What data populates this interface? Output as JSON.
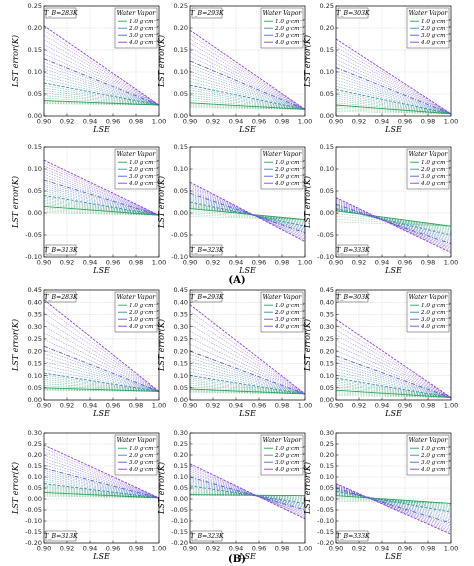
{
  "figure": {
    "part_labels": [
      "(A)",
      "(B)"
    ],
    "series_colors": [
      "#2ca05a",
      "#3a8ea6",
      "#5560c8",
      "#8a3fe0"
    ]
  },
  "chart_data": [
    {
      "type": "line",
      "part": "(A)",
      "tb_label": "T_B=283K",
      "xlabel": "LSE",
      "ylabel": "LST error(K)",
      "xlim": [
        0.9,
        1.0
      ],
      "ylim": [
        0.0,
        0.25
      ],
      "yticks": [
        0.0,
        0.05,
        0.1,
        0.15,
        0.2,
        0.25
      ],
      "xticks": [
        0.9,
        0.92,
        0.94,
        0.96,
        0.98,
        1.0
      ],
      "legend_title": "Water Vapor",
      "legend_position": "top-right",
      "tb_position": "top-left",
      "grid": true,
      "series": [
        {
          "name": "1.0 g·cm⁻²",
          "x": [
            0.9,
            1.0
          ],
          "y": [
            0.035,
            0.025
          ]
        },
        {
          "name": "2.0 g·cm⁻²",
          "x": [
            0.9,
            1.0
          ],
          "y": [
            0.075,
            0.025
          ]
        },
        {
          "name": "3.0 g·cm⁻²",
          "x": [
            0.9,
            1.0
          ],
          "y": [
            0.13,
            0.025
          ]
        },
        {
          "name": "4.0 g·cm⁻²",
          "x": [
            0.9,
            1.0
          ],
          "y": [
            0.205,
            0.025
          ]
        }
      ]
    },
    {
      "type": "line",
      "part": "(A)",
      "tb_label": "T_B=293K",
      "xlabel": "LSE",
      "ylabel": "LST error(K)",
      "xlim": [
        0.9,
        1.0
      ],
      "ylim": [
        0.0,
        0.25
      ],
      "yticks": [
        0.0,
        0.05,
        0.1,
        0.15,
        0.2,
        0.25
      ],
      "xticks": [
        0.9,
        0.92,
        0.94,
        0.96,
        0.98,
        1.0
      ],
      "legend_title": "Water Vapor",
      "legend_position": "top-right",
      "tb_position": "top-left",
      "grid": true,
      "series": [
        {
          "name": "1.0 g·cm⁻²",
          "x": [
            0.9,
            1.0
          ],
          "y": [
            0.03,
            0.015
          ]
        },
        {
          "name": "2.0 g·cm⁻²",
          "x": [
            0.9,
            1.0
          ],
          "y": [
            0.07,
            0.015
          ]
        },
        {
          "name": "3.0 g·cm⁻²",
          "x": [
            0.9,
            1.0
          ],
          "y": [
            0.125,
            0.015
          ]
        },
        {
          "name": "4.0 g·cm⁻²",
          "x": [
            0.9,
            1.0
          ],
          "y": [
            0.195,
            0.015
          ]
        }
      ]
    },
    {
      "type": "line",
      "part": "(A)",
      "tb_label": "T_B=303K",
      "xlabel": "LSE",
      "ylabel": "LST error(K)",
      "xlim": [
        0.9,
        1.0
      ],
      "ylim": [
        0.0,
        0.25
      ],
      "yticks": [
        0.0,
        0.05,
        0.1,
        0.15,
        0.2,
        0.25
      ],
      "xticks": [
        0.9,
        0.92,
        0.94,
        0.96,
        0.98,
        1.0
      ],
      "legend_title": "Water Vapor",
      "legend_position": "top-right",
      "tb_position": "top-left",
      "grid": true,
      "series": [
        {
          "name": "1.0 g·cm⁻²",
          "x": [
            0.9,
            1.0
          ],
          "y": [
            0.025,
            0.005
          ]
        },
        {
          "name": "2.0 g·cm⁻²",
          "x": [
            0.9,
            1.0
          ],
          "y": [
            0.06,
            0.005
          ]
        },
        {
          "name": "3.0 g·cm⁻²",
          "x": [
            0.9,
            1.0
          ],
          "y": [
            0.11,
            0.005
          ]
        },
        {
          "name": "4.0 g·cm⁻²",
          "x": [
            0.9,
            1.0
          ],
          "y": [
            0.175,
            0.005
          ]
        }
      ]
    },
    {
      "type": "line",
      "part": "(A)",
      "tb_label": "T_B=313K",
      "xlabel": "LSE",
      "ylabel": "LST error(K)",
      "xlim": [
        0.9,
        1.0
      ],
      "ylim": [
        -0.1,
        0.15
      ],
      "yticks": [
        -0.1,
        -0.05,
        0.0,
        0.05,
        0.1,
        0.15
      ],
      "xticks": [
        0.9,
        0.92,
        0.94,
        0.96,
        0.98,
        1.0
      ],
      "legend_title": "Water Vapor",
      "legend_position": "top-right",
      "tb_position": "bottom-left",
      "grid": true,
      "series": [
        {
          "name": "1.0 g·cm⁻²",
          "x": [
            0.9,
            1.0
          ],
          "y": [
            0.015,
            -0.005
          ]
        },
        {
          "name": "2.0 g·cm⁻²",
          "x": [
            0.9,
            1.0
          ],
          "y": [
            0.04,
            -0.005
          ]
        },
        {
          "name": "3.0 g·cm⁻²",
          "x": [
            0.9,
            1.0
          ],
          "y": [
            0.075,
            -0.005
          ]
        },
        {
          "name": "4.0 g·cm⁻²",
          "x": [
            0.9,
            1.0
          ],
          "y": [
            0.12,
            -0.005
          ]
        }
      ]
    },
    {
      "type": "line",
      "part": "(A)",
      "tb_label": "T_B=323K",
      "xlabel": "LSE",
      "ylabel": "LST error(K)",
      "xlim": [
        0.9,
        1.0
      ],
      "ylim": [
        -0.1,
        0.15
      ],
      "yticks": [
        -0.1,
        -0.05,
        0.0,
        0.05,
        0.1,
        0.15
      ],
      "xticks": [
        0.9,
        0.92,
        0.94,
        0.96,
        0.98,
        1.0
      ],
      "legend_title": "Water Vapor",
      "legend_position": "top-right",
      "tb_position": "bottom-left",
      "grid": true,
      "series": [
        {
          "name": "1.0 g·cm⁻²",
          "x": [
            0.9,
            1.0
          ],
          "y": [
            0.01,
            -0.015
          ]
        },
        {
          "name": "2.0 g·cm⁻²",
          "x": [
            0.9,
            1.0
          ],
          "y": [
            0.025,
            -0.03
          ]
        },
        {
          "name": "3.0 g·cm⁻²",
          "x": [
            0.9,
            1.0
          ],
          "y": [
            0.045,
            -0.045
          ]
        },
        {
          "name": "4.0 g·cm⁻²",
          "x": [
            0.9,
            1.0
          ],
          "y": [
            0.07,
            -0.065
          ]
        }
      ]
    },
    {
      "type": "line",
      "part": "(A)",
      "tb_label": "T_B=333K",
      "xlabel": "LSE",
      "ylabel": "LST error(K)",
      "xlim": [
        0.9,
        1.0
      ],
      "ylim": [
        -0.1,
        0.15
      ],
      "yticks": [
        -0.1,
        -0.05,
        0.0,
        0.05,
        0.1,
        0.15
      ],
      "xticks": [
        0.9,
        0.92,
        0.94,
        0.96,
        0.98,
        1.0
      ],
      "legend_title": "Water Vapor",
      "legend_position": "top-right",
      "tb_position": "bottom-left",
      "grid": true,
      "series": [
        {
          "name": "1.0 g·cm⁻²",
          "x": [
            0.9,
            1.0
          ],
          "y": [
            0.005,
            -0.03
          ]
        },
        {
          "name": "2.0 g·cm⁻²",
          "x": [
            0.9,
            1.0
          ],
          "y": [
            0.01,
            -0.05
          ]
        },
        {
          "name": "3.0 g·cm⁻²",
          "x": [
            0.9,
            1.0
          ],
          "y": [
            0.02,
            -0.07
          ]
        },
        {
          "name": "4.0 g·cm⁻²",
          "x": [
            0.9,
            1.0
          ],
          "y": [
            0.035,
            -0.09
          ]
        }
      ]
    },
    {
      "type": "line",
      "part": "(B)",
      "tb_label": "T_B=283K",
      "xlabel": "LSE",
      "ylabel": "LST error(K)",
      "xlim": [
        0.9,
        1.0
      ],
      "ylim": [
        0.0,
        0.45
      ],
      "yticks": [
        0.0,
        0.05,
        0.1,
        0.15,
        0.2,
        0.25,
        0.3,
        0.35,
        0.4,
        0.45
      ],
      "xticks": [
        0.9,
        0.92,
        0.94,
        0.96,
        0.98,
        1.0
      ],
      "legend_title": "Water Vapor",
      "legend_position": "top-right",
      "tb_position": "top-left",
      "grid": true,
      "series": [
        {
          "name": "1.0 g·cm⁻²",
          "x": [
            0.9,
            1.0
          ],
          "y": [
            0.05,
            0.035
          ]
        },
        {
          "name": "2.0 g·cm⁻²",
          "x": [
            0.9,
            1.0
          ],
          "y": [
            0.11,
            0.035
          ]
        },
        {
          "name": "3.0 g·cm⁻²",
          "x": [
            0.9,
            1.0
          ],
          "y": [
            0.22,
            0.035
          ]
        },
        {
          "name": "4.0 g·cm⁻²",
          "x": [
            0.9,
            1.0
          ],
          "y": [
            0.41,
            0.035
          ]
        }
      ]
    },
    {
      "type": "line",
      "part": "(B)",
      "tb_label": "T_B=293K",
      "xlabel": "LSE",
      "ylabel": "LST error(K)",
      "xlim": [
        0.9,
        1.0
      ],
      "ylim": [
        0.0,
        0.45
      ],
      "yticks": [
        0.0,
        0.05,
        0.1,
        0.15,
        0.2,
        0.25,
        0.3,
        0.35,
        0.4,
        0.45
      ],
      "xticks": [
        0.9,
        0.92,
        0.94,
        0.96,
        0.98,
        1.0
      ],
      "legend_title": "Water Vapor",
      "legend_position": "top-right",
      "tb_position": "top-left",
      "grid": true,
      "series": [
        {
          "name": "1.0 g·cm⁻²",
          "x": [
            0.9,
            1.0
          ],
          "y": [
            0.045,
            0.025
          ]
        },
        {
          "name": "2.0 g·cm⁻²",
          "x": [
            0.9,
            1.0
          ],
          "y": [
            0.1,
            0.025
          ]
        },
        {
          "name": "3.0 g·cm⁻²",
          "x": [
            0.9,
            1.0
          ],
          "y": [
            0.2,
            0.025
          ]
        },
        {
          "name": "4.0 g·cm⁻²",
          "x": [
            0.9,
            1.0
          ],
          "y": [
            0.39,
            0.025
          ]
        }
      ]
    },
    {
      "type": "line",
      "part": "(B)",
      "tb_label": "T_B=303K",
      "xlabel": "LSE",
      "ylabel": "LST error(K)",
      "xlim": [
        0.9,
        1.0
      ],
      "ylim": [
        0.0,
        0.45
      ],
      "yticks": [
        0.0,
        0.05,
        0.1,
        0.15,
        0.2,
        0.25,
        0.3,
        0.35,
        0.4,
        0.45
      ],
      "xticks": [
        0.9,
        0.92,
        0.94,
        0.96,
        0.98,
        1.0
      ],
      "legend_title": "Water Vapor",
      "legend_position": "top-right",
      "tb_position": "top-left",
      "grid": true,
      "series": [
        {
          "name": "1.0 g·cm⁻²",
          "x": [
            0.9,
            1.0
          ],
          "y": [
            0.04,
            0.01
          ]
        },
        {
          "name": "2.0 g·cm⁻²",
          "x": [
            0.9,
            1.0
          ],
          "y": [
            0.09,
            0.01
          ]
        },
        {
          "name": "3.0 g·cm⁻²",
          "x": [
            0.9,
            1.0
          ],
          "y": [
            0.18,
            0.01
          ]
        },
        {
          "name": "4.0 g·cm⁻²",
          "x": [
            0.9,
            1.0
          ],
          "y": [
            0.33,
            0.01
          ]
        }
      ]
    },
    {
      "type": "line",
      "part": "(B)",
      "tb_label": "T_B=313K",
      "xlabel": "LSE",
      "ylabel": "LST error(K)",
      "xlim": [
        0.9,
        1.0
      ],
      "ylim": [
        -0.2,
        0.3
      ],
      "yticks": [
        -0.2,
        -0.15,
        -0.1,
        -0.05,
        0.0,
        0.05,
        0.1,
        0.15,
        0.2,
        0.25,
        0.3
      ],
      "xticks": [
        0.9,
        0.92,
        0.94,
        0.96,
        0.98,
        1.0
      ],
      "legend_title": "Water Vapor",
      "legend_position": "top-right",
      "tb_position": "bottom-left",
      "grid": true,
      "series": [
        {
          "name": "1.0 g·cm⁻²",
          "x": [
            0.9,
            1.0
          ],
          "y": [
            0.03,
            0.005
          ]
        },
        {
          "name": "2.0 g·cm⁻²",
          "x": [
            0.9,
            1.0
          ],
          "y": [
            0.07,
            0.005
          ]
        },
        {
          "name": "3.0 g·cm⁻²",
          "x": [
            0.9,
            1.0
          ],
          "y": [
            0.14,
            0.005
          ]
        },
        {
          "name": "4.0 g·cm⁻²",
          "x": [
            0.9,
            1.0
          ],
          "y": [
            0.245,
            0.005
          ]
        }
      ]
    },
    {
      "type": "line",
      "part": "(B)",
      "tb_label": "T_B=323K",
      "xlabel": "LSE",
      "ylabel": "LST error(K)",
      "xlim": [
        0.9,
        1.0
      ],
      "ylim": [
        -0.2,
        0.3
      ],
      "yticks": [
        -0.2,
        -0.15,
        -0.1,
        -0.05,
        0.0,
        0.05,
        0.1,
        0.15,
        0.2,
        0.25,
        0.3
      ],
      "xticks": [
        0.9,
        0.92,
        0.94,
        0.96,
        0.98,
        1.0
      ],
      "legend_title": "Water Vapor",
      "legend_position": "top-right",
      "tb_position": "bottom-left",
      "grid": true,
      "series": [
        {
          "name": "1.0 g·cm⁻²",
          "x": [
            0.9,
            1.0
          ],
          "y": [
            0.02,
            0.015
          ]
        },
        {
          "name": "2.0 g·cm⁻²",
          "x": [
            0.9,
            1.0
          ],
          "y": [
            0.06,
            -0.02
          ]
        },
        {
          "name": "3.0 g·cm⁻²",
          "x": [
            0.9,
            1.0
          ],
          "y": [
            0.1,
            -0.05
          ]
        },
        {
          "name": "4.0 g·cm⁻²",
          "x": [
            0.9,
            1.0
          ],
          "y": [
            0.16,
            -0.09
          ]
        }
      ]
    },
    {
      "type": "line",
      "part": "(B)",
      "tb_label": "T_B=333K",
      "xlabel": "LSE",
      "ylabel": "LST error(K)",
      "xlim": [
        0.9,
        1.0
      ],
      "ylim": [
        -0.2,
        0.3
      ],
      "yticks": [
        -0.2,
        -0.15,
        -0.1,
        -0.05,
        0.0,
        0.05,
        0.1,
        0.15,
        0.2,
        0.25,
        0.3
      ],
      "xticks": [
        0.9,
        0.92,
        0.94,
        0.96,
        0.98,
        1.0
      ],
      "legend_title": "Water Vapor",
      "legend_position": "top-right",
      "tb_position": "bottom-left",
      "grid": true,
      "series": [
        {
          "name": "1.0 g·cm⁻²",
          "x": [
            0.9,
            1.0
          ],
          "y": [
            0.015,
            -0.02
          ]
        },
        {
          "name": "2.0 g·cm⁻²",
          "x": [
            0.9,
            1.0
          ],
          "y": [
            0.035,
            -0.06
          ]
        },
        {
          "name": "3.0 g·cm⁻²",
          "x": [
            0.9,
            1.0
          ],
          "y": [
            0.05,
            -0.11
          ]
        },
        {
          "name": "4.0 g·cm⁻²",
          "x": [
            0.9,
            1.0
          ],
          "y": [
            0.07,
            -0.16
          ]
        }
      ]
    }
  ]
}
